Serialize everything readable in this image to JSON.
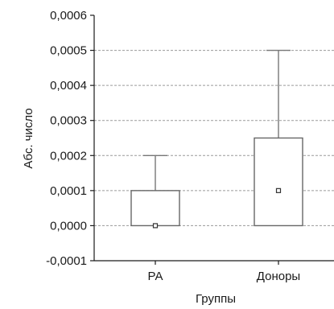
{
  "chart_data": {
    "type": "boxplot",
    "title": "",
    "xlabel": "Группы",
    "ylabel": "Абс. число",
    "ylim": [
      -0.0001,
      0.0006
    ],
    "yticks": [
      -0.0001,
      0.0,
      0.0001,
      0.0002,
      0.0003,
      0.0004,
      0.0005,
      0.0006
    ],
    "ytick_labels": [
      "-0,0001",
      "0,0000",
      "0,0001",
      "0,0002",
      "0,0003",
      "0,0004",
      "0,0005",
      "0,0006"
    ],
    "grid": true,
    "categories": [
      "РА",
      "Доноры"
    ],
    "boxes": [
      {
        "category": "РА",
        "whisker_low": 0.0,
        "q1": 0.0,
        "median": 0.0,
        "q3": 0.0001,
        "whisker_high": 0.0002
      },
      {
        "category": "Доноры",
        "whisker_low": 0.0,
        "q1": 0.0,
        "median": 0.0001,
        "q3": 0.00025,
        "whisker_high": 0.0005
      }
    ],
    "colors": {
      "axis": "#1a1a1a",
      "box": "#666666",
      "whisker": "#777777",
      "grid": "#9a9a9a",
      "median_marker": "#333333"
    }
  }
}
